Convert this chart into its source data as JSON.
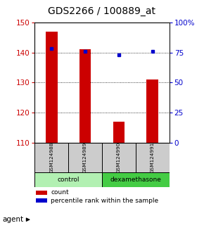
{
  "title": "GDS2266 / 100889_at",
  "samples": [
    "GSM124988",
    "GSM124989",
    "GSM124990",
    "GSM124991"
  ],
  "counts": [
    147,
    141,
    117,
    131
  ],
  "percentiles": [
    78,
    76,
    73,
    76
  ],
  "group_spans": [
    {
      "label": "control",
      "start": 0,
      "end": 1,
      "color": "#b2f0b2"
    },
    {
      "label": "dexamethasone",
      "start": 2,
      "end": 3,
      "color": "#44cc44"
    }
  ],
  "ylim_left": [
    110,
    150
  ],
  "ylim_right": [
    0,
    100
  ],
  "yticks_left": [
    110,
    120,
    130,
    140,
    150
  ],
  "yticks_right": [
    0,
    25,
    50,
    75,
    100
  ],
  "bar_color": "#cc0000",
  "dot_color": "#0000cc",
  "sample_band_color": "#cccccc",
  "title_fontsize": 10,
  "bar_width": 0.35,
  "left_label_color": "#cc0000",
  "right_label_color": "#0000cc",
  "tick_fontsize": 7.5
}
